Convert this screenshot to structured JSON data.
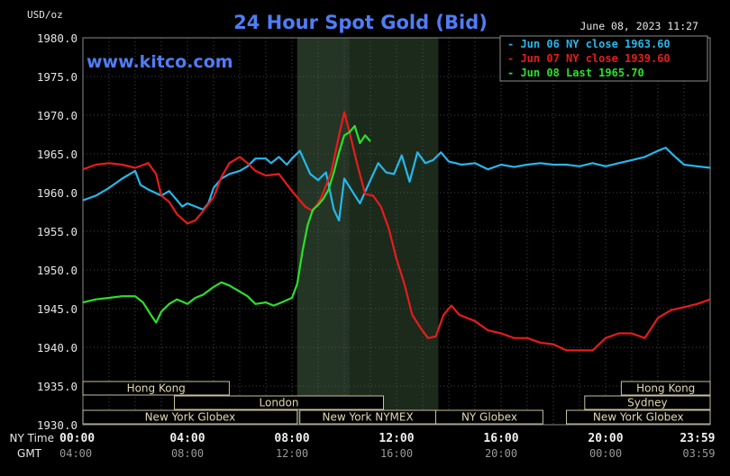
{
  "header": {
    "unit": "USD/oz",
    "title": "24 Hour Spot Gold (Bid)",
    "date": "June 08, 2023 11:27",
    "watermark": "www.kitco.com"
  },
  "colors": {
    "background": "#000000",
    "plot_bg": "#000000",
    "shade": "#1c2a1c",
    "grid": "#5a5a5a",
    "label": "#e6e6e6",
    "title": "#4f7df5",
    "series": [
      "#25b8ec",
      "#e81b1b",
      "#2be02b"
    ]
  },
  "chart_data": {
    "type": "line",
    "ylim": [
      1930,
      1980
    ],
    "yticks": [
      1930,
      1935,
      1940,
      1945,
      1950,
      1955,
      1960,
      1965,
      1970,
      1975,
      1980
    ],
    "ytick_labels": [
      "1930.0",
      "1935.0",
      "1940.0",
      "1945.0",
      "1950.0",
      "1955.0",
      "1960.0",
      "1965.0",
      "1970.0",
      "1975.0",
      "1980.0"
    ],
    "xlim": [
      0,
      24
    ],
    "x_ticks": [
      0,
      4,
      8,
      12,
      16,
      20,
      23.983
    ],
    "ny_labels": [
      "00:00",
      "04:00",
      "08:00",
      "12:00",
      "16:00",
      "20:00",
      "23:59"
    ],
    "gmt_labels": [
      "04:00",
      "08:00",
      "12:00",
      "16:00",
      "20:00",
      "00:00",
      "03:59"
    ],
    "ny_row_label": "NY Time",
    "gmt_row_label": "GMT",
    "shaded_range": [
      8.2,
      13.6
    ],
    "highlight_range": [
      8.2,
      10.2
    ],
    "legend": [
      "- Jun 06 NY close 1963.60",
      "- Jun 07 NY close 1939.60",
      "- Jun 08 Last 1965.70"
    ],
    "sessions": [
      {
        "label": "Hong Kong",
        "segments": [
          [
            0,
            5.6
          ],
          [
            20.6,
            24
          ]
        ],
        "row": 0
      },
      {
        "label": "Sydney",
        "segments": [
          [
            19.2,
            24
          ]
        ],
        "row": 1
      },
      {
        "label": "London",
        "segments": [
          [
            3.5,
            11.5
          ]
        ],
        "row": 1
      },
      {
        "label": "New York Globex",
        "segments": [
          [
            0,
            8.2
          ],
          [
            18.5,
            24
          ]
        ],
        "row": 2
      },
      {
        "label": "New York NYMEX",
        "segments": [
          [
            8.3,
            13.5
          ]
        ],
        "row": 2
      },
      {
        "label": "NY Globex",
        "segments": [
          [
            13.5,
            17.6
          ]
        ],
        "row": 2
      }
    ],
    "series": [
      {
        "color": "#25b8ec",
        "x": [
          0,
          0.5,
          1,
          1.5,
          2,
          2.2,
          2.5,
          3,
          3.3,
          3.6,
          3.8,
          4,
          4.3,
          4.6,
          4.8,
          5,
          5.3,
          5.6,
          6,
          6.3,
          6.6,
          7,
          7.2,
          7.5,
          7.8,
          8,
          8.3,
          8.7,
          9,
          9.3,
          9.6,
          9.8,
          10,
          10.3,
          10.6,
          11,
          11.3,
          11.6,
          11.9,
          12.2,
          12.5,
          12.8,
          13.1,
          13.4,
          13.7,
          14,
          14.5,
          15,
          15.5,
          16,
          16.5,
          17,
          17.5,
          18,
          18.5,
          19,
          19.5,
          20,
          20.5,
          21,
          21.5,
          22,
          22.3,
          22.6,
          23,
          23.5,
          24
        ],
        "y": [
          1959,
          1959.6,
          1960.6,
          1961.8,
          1962.8,
          1961,
          1960.4,
          1959.6,
          1960.2,
          1959,
          1958.2,
          1958.6,
          1958.2,
          1957.8,
          1958.6,
          1960.6,
          1961.8,
          1962.4,
          1962.8,
          1963.4,
          1964.4,
          1964.4,
          1963.8,
          1964.6,
          1963.6,
          1964.4,
          1965.4,
          1962.4,
          1961.6,
          1962.6,
          1957.8,
          1956.4,
          1961.8,
          1960.2,
          1958.6,
          1961.6,
          1963.8,
          1962.6,
          1962.4,
          1964.8,
          1961.4,
          1965.2,
          1963.8,
          1964.2,
          1965.2,
          1964,
          1963.6,
          1963.8,
          1963,
          1963.6,
          1963.3,
          1963.6,
          1963.8,
          1963.6,
          1963.6,
          1963.4,
          1963.8,
          1963.4,
          1963.8,
          1964.2,
          1964.6,
          1965.4,
          1965.8,
          1964.8,
          1963.6,
          1963.4,
          1963.2
        ]
      },
      {
        "color": "#e81b1b",
        "x": [
          0,
          0.5,
          1,
          1.5,
          2,
          2.5,
          2.8,
          3,
          3.3,
          3.6,
          4,
          4.3,
          4.6,
          5,
          5.3,
          5.6,
          6,
          6.3,
          6.6,
          7,
          7.5,
          8,
          8.2,
          8.5,
          8.8,
          9.1,
          9.5,
          9.8,
          10,
          10.2,
          10.5,
          10.8,
          11.1,
          11.4,
          11.7,
          12,
          12.3,
          12.6,
          12.9,
          13.2,
          13.5,
          13.8,
          14.1,
          14.4,
          15,
          15.5,
          16,
          16.5,
          17,
          17.5,
          18,
          18.5,
          19,
          19.5,
          20,
          20.5,
          21,
          21.5,
          22,
          22.5,
          23,
          23.5,
          24
        ],
        "y": [
          1963,
          1963.6,
          1963.8,
          1963.6,
          1963.2,
          1963.8,
          1962.4,
          1959.6,
          1958.8,
          1957.2,
          1956,
          1956.4,
          1957.6,
          1959.4,
          1962,
          1963.8,
          1964.6,
          1963.8,
          1962.8,
          1962.2,
          1962.4,
          1960.2,
          1959.4,
          1958.2,
          1957.6,
          1959.2,
          1962.6,
          1967.4,
          1970.4,
          1967.8,
          1963.6,
          1959.8,
          1959.6,
          1958.2,
          1955.4,
          1951.4,
          1948.2,
          1944.2,
          1942.6,
          1941.2,
          1941.4,
          1944.2,
          1945.4,
          1944.2,
          1943.4,
          1942.2,
          1941.8,
          1941.2,
          1941.2,
          1940.6,
          1940.4,
          1939.6,
          1939.6,
          1939.6,
          1941.2,
          1941.8,
          1941.8,
          1941.2,
          1943.8,
          1944.8,
          1945.2,
          1945.6,
          1946.2
        ]
      },
      {
        "color": "#2be02b",
        "x": [
          0,
          0.5,
          1,
          1.5,
          2,
          2.3,
          2.6,
          2.8,
          3,
          3.3,
          3.6,
          4,
          4.3,
          4.6,
          5,
          5.3,
          5.6,
          6,
          6.3,
          6.6,
          7,
          7.3,
          7.6,
          8,
          8.2,
          8.4,
          8.6,
          8.8,
          9,
          9.2,
          9.4,
          9.6,
          9.8,
          10,
          10.2,
          10.4,
          10.6,
          10.8,
          11
        ],
        "y": [
          1945.8,
          1946.2,
          1946.4,
          1946.6,
          1946.6,
          1945.8,
          1944.2,
          1943.2,
          1944.6,
          1945.6,
          1946.2,
          1945.6,
          1946.4,
          1946.8,
          1947.8,
          1948.4,
          1948,
          1947.2,
          1946.6,
          1945.6,
          1945.8,
          1945.4,
          1945.8,
          1946.4,
          1948.2,
          1952.4,
          1955.8,
          1957.8,
          1958.4,
          1959.2,
          1960.4,
          1962.6,
          1965.2,
          1967.4,
          1967.8,
          1968.6,
          1966.4,
          1967.4,
          1966.6
        ]
      }
    ]
  }
}
